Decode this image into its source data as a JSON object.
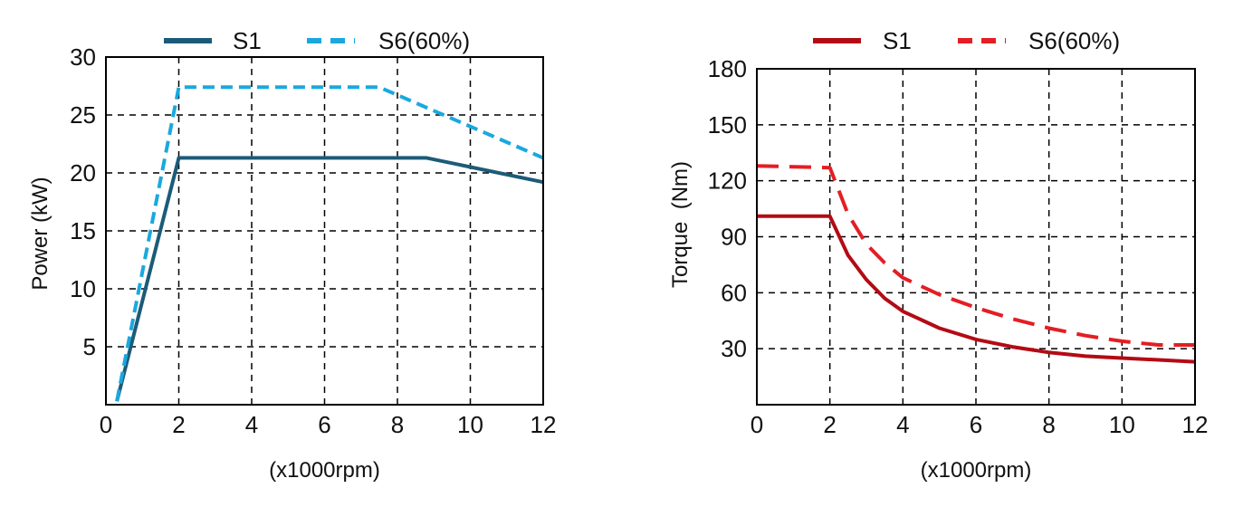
{
  "chart_data": [
    {
      "type": "line",
      "ylabel": "Power (kW)",
      "xlabel": "(x1000rpm)",
      "xlim": [
        0,
        12
      ],
      "ylim": [
        0,
        30
      ],
      "x_ticks": [
        "0",
        "2",
        "4",
        "6",
        "8",
        "10",
        "12"
      ],
      "y_ticks": [
        "5",
        "10",
        "15",
        "20",
        "25",
        "30"
      ],
      "grid": true,
      "legend": "top-center",
      "series": [
        {
          "name": "S1",
          "color": "#1c5b78",
          "style": "solid",
          "x": [
            0.3,
            2.0,
            8.8,
            12.0
          ],
          "y": [
            0.3,
            21.3,
            21.3,
            19.2
          ]
        },
        {
          "name": "S6(60%)",
          "color": "#1aa8de",
          "style": "dashed",
          "x": [
            0.3,
            2.0,
            7.5,
            12.0
          ],
          "y": [
            0.3,
            27.4,
            27.4,
            21.3
          ]
        }
      ]
    },
    {
      "type": "line",
      "ylabel": "Torque  (Nm)",
      "xlabel": "(x1000rpm)",
      "xlim": [
        0,
        12
      ],
      "ylim": [
        0,
        180
      ],
      "x_ticks": [
        "0",
        "2",
        "4",
        "6",
        "8",
        "10",
        "12"
      ],
      "y_ticks": [
        "30",
        "60",
        "90",
        "120",
        "150",
        "180"
      ],
      "grid": true,
      "legend": "top-center",
      "series": [
        {
          "name": "S1",
          "color": "#b30b14",
          "style": "solid",
          "x": [
            0,
            2,
            2.5,
            3,
            3.5,
            4,
            5,
            6,
            7,
            8,
            9,
            10,
            11,
            12
          ],
          "y": [
            101,
            101,
            80,
            67,
            57,
            50,
            41,
            35,
            31,
            28,
            26,
            25,
            24,
            23
          ]
        },
        {
          "name": "S6(60%)",
          "color": "#e31e24",
          "style": "dashed",
          "x": [
            0,
            2,
            2.5,
            3,
            3.5,
            4,
            5,
            6,
            7,
            8,
            9,
            10,
            11,
            12
          ],
          "y": [
            128,
            127,
            102,
            86,
            76,
            68,
            59,
            52,
            46,
            41,
            37,
            34,
            32,
            32
          ]
        }
      ]
    }
  ]
}
